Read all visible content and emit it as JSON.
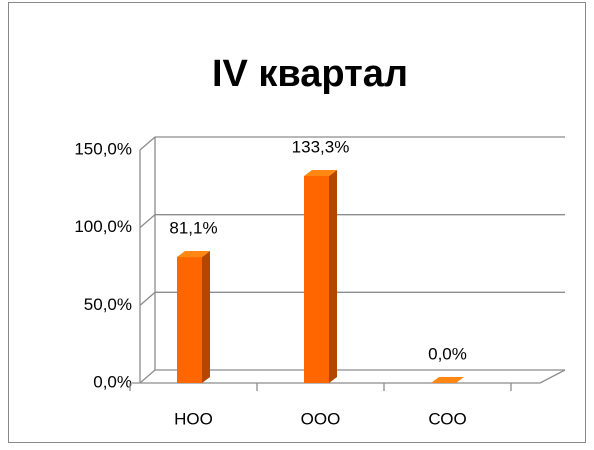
{
  "chart_data": {
    "type": "bar3d",
    "title": "IV  квартал",
    "categories": [
      "НОО",
      "ООО",
      "СОО"
    ],
    "values": [
      81.1,
      133.3,
      0.0
    ],
    "value_labels": [
      "81,1%",
      "133,3%",
      "0,0%"
    ],
    "color": "#ff6600",
    "ylim": [
      0,
      150
    ],
    "yticks": [
      {
        "value": 0,
        "label": "0,0%"
      },
      {
        "value": 50,
        "label": "50,0%"
      },
      {
        "value": 100,
        "label": "100,0%"
      },
      {
        "value": 150,
        "label": "150,0%"
      }
    ],
    "grid": true
  }
}
